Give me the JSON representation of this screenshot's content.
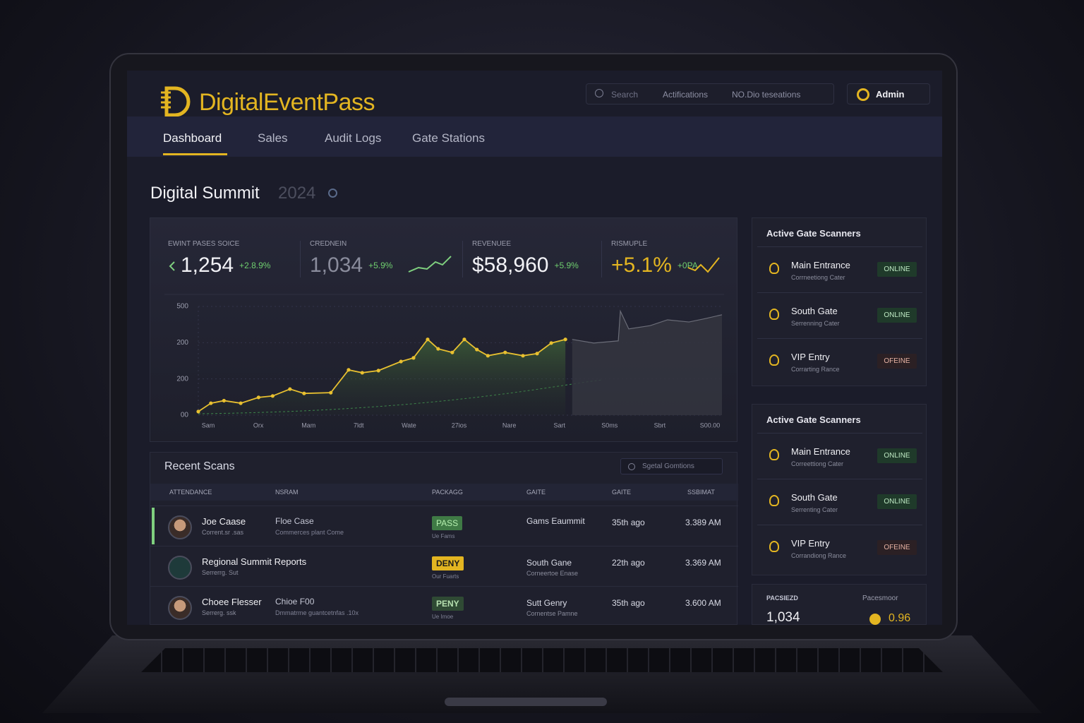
{
  "brand": "DigitalEventPass",
  "topbar": {
    "search": "Search",
    "notifications": "Actifications",
    "events": "NO.Dio teseations",
    "user": "Admin"
  },
  "nav": [
    "Dashboard",
    "Sales",
    "Audit Logs",
    "Gate Stations"
  ],
  "page_title": {
    "name": "Digital Summit",
    "year": "2024"
  },
  "kpis": [
    {
      "label": "EWINT PASES SOICE",
      "value": "1,254",
      "change": "+2.8.9%"
    },
    {
      "label": "CREDNEIN",
      "value": "1,034",
      "change": "+5.9%"
    },
    {
      "label": "REVENUEE",
      "value": "$58,960",
      "change": "+5.9%"
    },
    {
      "label": "RISMUPLE",
      "value": "+5.1%",
      "change": "+0PA"
    }
  ],
  "chart": {
    "type": "area",
    "xlim": [
      0,
      100
    ],
    "ylim": [
      0,
      3
    ],
    "yticks": [
      {
        "value": 3,
        "label": "500"
      },
      {
        "value": 2,
        "label": "200"
      },
      {
        "value": 1,
        "label": "200"
      },
      {
        "value": 0,
        "label": "00"
      }
    ],
    "xlabels": [
      "Sam",
      "Orx",
      "Mam",
      "7ldt",
      "Wate",
      "27ios",
      "Nare",
      "Sart",
      "S0ms",
      "Sbrt",
      "S00.00"
    ],
    "series": [
      {
        "color": "#e8c030",
        "x": [
          0,
          2.4,
          4.9,
          8.1,
          11.5,
          14.2,
          17.5,
          20.2,
          25.3,
          28.7,
          31.3,
          34.4,
          38.7,
          41.1,
          43.8,
          45.8,
          48.5,
          50.8,
          53.2,
          55.3,
          58.6,
          62,
          64.7,
          67.4,
          70.1
        ],
        "values": [
          0.1,
          0.33,
          0.4,
          0.33,
          0.49,
          0.53,
          0.72,
          0.6,
          0.62,
          1.25,
          1.17,
          1.23,
          1.48,
          1.58,
          2.09,
          1.83,
          1.73,
          2.09,
          1.81,
          1.64,
          1.73,
          1.64,
          1.7,
          1.99,
          2.09
        ]
      },
      {
        "color": "#6b6d78",
        "x": [
          71.4,
          75.5,
          80.2,
          80.6,
          82.2,
          86.3,
          89.6,
          93.7,
          97,
          100
        ],
        "values": [
          2.09,
          1.99,
          2.05,
          2.87,
          2.38,
          2.47,
          2.63,
          2.57,
          2.67,
          2.77
        ]
      }
    ]
  },
  "recent_scans": {
    "title": "Recent Scans",
    "search": "Sgetal Gomtions",
    "columns": [
      "ATTENDANCE",
      "NSRAM",
      "PACKAGG",
      "GAITE",
      "GAITE",
      "SSBIMAT"
    ],
    "rows": [
      {
        "name": "Joe Caase",
        "sub": "Corrent.sr .sas",
        "detail": "Floe Case",
        "detail_sub": "Commerces plant Come",
        "badge": "PASS",
        "badge_sub": "Ue Fams",
        "gate": "Gams Eaummit",
        "ago": "35th ago",
        "time": "3.389 AM"
      },
      {
        "name": "Regional Summit Reports",
        "sub": "Serrerrg. Sut",
        "badge": "DENY",
        "badge_sub": "Our Fuarts",
        "gate": "South Gane",
        "gate_sub": "Corneertoe Enase",
        "ago": "22th ago",
        "time": "3.369 AM"
      },
      {
        "name": "Choee Flesser",
        "sub": "Serrerg. ssk",
        "detail": "Chioe F00",
        "detail_sub": "Dmmatrme guantcetnfas .10x",
        "badge": "PENY",
        "badge_sub": "Ue Imoe",
        "gate": "Sutt Genry",
        "gate_sub": "Cornentse Pamne",
        "ago": "35th ago",
        "time": "3.600 AM"
      }
    ]
  },
  "scanner_panels": [
    {
      "title": "Active Gate Scanners",
      "items": [
        {
          "name": "Main Entrance",
          "sub": "Corrneetiong Cater",
          "status": "ONLINE"
        },
        {
          "name": "South Gate",
          "sub": "Serrenning Cater",
          "status": "ONLINE"
        },
        {
          "name": "VIP Entry",
          "sub": "Corrarting Rance",
          "status": "OFEINE"
        }
      ]
    },
    {
      "title": "Active Gate Scanners",
      "items": [
        {
          "name": "Main Entrance",
          "sub": "Correettiong Cater",
          "status": "ONLINE"
        },
        {
          "name": "South Gate",
          "sub": "Serrenting Cater",
          "status": "ONLINE"
        },
        {
          "name": "VIP Entry",
          "sub": "Corrandiong Rance",
          "status": "OFEINE"
        }
      ]
    }
  ],
  "footer_stats": {
    "left_label": "PACSIEZD",
    "left_value": "1,034",
    "right_label": "Pacesmoor",
    "right_value": "0.96"
  }
}
